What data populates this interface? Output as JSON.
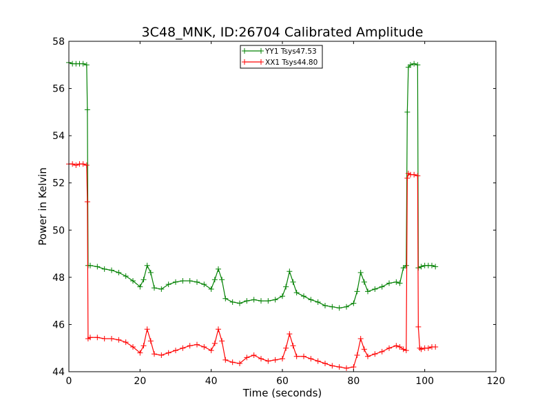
{
  "chart_data": {
    "type": "line",
    "title": "3C48_MNK, ID:26704 Calibrated Amplitude",
    "xlabel": "Time (seconds)",
    "ylabel": "Power in Kelvin",
    "xlim": [
      0,
      120
    ],
    "ylim": [
      44,
      58
    ],
    "xticks": [
      0,
      20,
      40,
      60,
      80,
      100,
      120
    ],
    "yticks": [
      44,
      46,
      48,
      50,
      52,
      54,
      56,
      58
    ],
    "grid": false,
    "legend_position": "top-center",
    "marker": "plus",
    "series": [
      {
        "name": "YY1 Tsys47.53",
        "color": "#008000",
        "points": [
          [
            0,
            57.1
          ],
          [
            1,
            57.05
          ],
          [
            2,
            57.05
          ],
          [
            3,
            57.05
          ],
          [
            4,
            57.05
          ],
          [
            5,
            57.0
          ],
          [
            5.2,
            55.1
          ],
          [
            5.4,
            48.5
          ],
          [
            6,
            48.5
          ],
          [
            8,
            48.45
          ],
          [
            10,
            48.35
          ],
          [
            12,
            48.3
          ],
          [
            14,
            48.2
          ],
          [
            16,
            48.05
          ],
          [
            18,
            47.85
          ],
          [
            20,
            47.6
          ],
          [
            21,
            47.9
          ],
          [
            22,
            48.5
          ],
          [
            23,
            48.2
          ],
          [
            24,
            47.55
          ],
          [
            26,
            47.5
          ],
          [
            28,
            47.7
          ],
          [
            30,
            47.8
          ],
          [
            32,
            47.85
          ],
          [
            34,
            47.85
          ],
          [
            36,
            47.8
          ],
          [
            38,
            47.7
          ],
          [
            40,
            47.5
          ],
          [
            41,
            47.9
          ],
          [
            42,
            48.35
          ],
          [
            43,
            47.9
          ],
          [
            44,
            47.1
          ],
          [
            46,
            46.95
          ],
          [
            48,
            46.9
          ],
          [
            50,
            47.0
          ],
          [
            52,
            47.05
          ],
          [
            54,
            47.0
          ],
          [
            56,
            47.0
          ],
          [
            58,
            47.05
          ],
          [
            60,
            47.2
          ],
          [
            61,
            47.6
          ],
          [
            62,
            48.25
          ],
          [
            63,
            47.8
          ],
          [
            64,
            47.35
          ],
          [
            66,
            47.2
          ],
          [
            68,
            47.05
          ],
          [
            70,
            46.95
          ],
          [
            72,
            46.8
          ],
          [
            74,
            46.75
          ],
          [
            76,
            46.7
          ],
          [
            78,
            46.75
          ],
          [
            80,
            46.9
          ],
          [
            81,
            47.4
          ],
          [
            82,
            48.2
          ],
          [
            83,
            47.8
          ],
          [
            84,
            47.4
          ],
          [
            86,
            47.5
          ],
          [
            88,
            47.6
          ],
          [
            90,
            47.75
          ],
          [
            92,
            47.8
          ],
          [
            93,
            47.75
          ],
          [
            94,
            48.4
          ],
          [
            94.8,
            48.5
          ],
          [
            95.1,
            55.0
          ],
          [
            95.4,
            56.9
          ],
          [
            96,
            57.0
          ],
          [
            97,
            57.05
          ],
          [
            98,
            57.0
          ],
          [
            98.2,
            48.4
          ],
          [
            99,
            48.45
          ],
          [
            100,
            48.5
          ],
          [
            101,
            48.5
          ],
          [
            102,
            48.5
          ],
          [
            103,
            48.45
          ]
        ]
      },
      {
        "name": "XX1 Tsys44.80",
        "color": "#ff0000",
        "points": [
          [
            0,
            52.8
          ],
          [
            1,
            52.8
          ],
          [
            2,
            52.75
          ],
          [
            3,
            52.8
          ],
          [
            4,
            52.8
          ],
          [
            5,
            52.75
          ],
          [
            5.2,
            51.2
          ],
          [
            5.4,
            45.4
          ],
          [
            6,
            45.45
          ],
          [
            8,
            45.45
          ],
          [
            10,
            45.4
          ],
          [
            12,
            45.4
          ],
          [
            14,
            45.35
          ],
          [
            16,
            45.25
          ],
          [
            18,
            45.05
          ],
          [
            20,
            44.8
          ],
          [
            21,
            45.1
          ],
          [
            22,
            45.8
          ],
          [
            23,
            45.3
          ],
          [
            24,
            44.75
          ],
          [
            26,
            44.7
          ],
          [
            28,
            44.8
          ],
          [
            30,
            44.9
          ],
          [
            32,
            45.0
          ],
          [
            34,
            45.1
          ],
          [
            36,
            45.15
          ],
          [
            38,
            45.05
          ],
          [
            40,
            44.9
          ],
          [
            41,
            45.2
          ],
          [
            42,
            45.8
          ],
          [
            43,
            45.3
          ],
          [
            44,
            44.5
          ],
          [
            46,
            44.4
          ],
          [
            48,
            44.35
          ],
          [
            50,
            44.6
          ],
          [
            52,
            44.7
          ],
          [
            54,
            44.55
          ],
          [
            56,
            44.45
          ],
          [
            58,
            44.5
          ],
          [
            60,
            44.55
          ],
          [
            61,
            45.0
          ],
          [
            62,
            45.6
          ],
          [
            63,
            45.1
          ],
          [
            64,
            44.65
          ],
          [
            66,
            44.65
          ],
          [
            68,
            44.55
          ],
          [
            70,
            44.45
          ],
          [
            72,
            44.35
          ],
          [
            74,
            44.25
          ],
          [
            76,
            44.2
          ],
          [
            78,
            44.15
          ],
          [
            80,
            44.2
          ],
          [
            81,
            44.7
          ],
          [
            82,
            45.4
          ],
          [
            83,
            44.95
          ],
          [
            84,
            44.65
          ],
          [
            86,
            44.75
          ],
          [
            88,
            44.85
          ],
          [
            90,
            45.0
          ],
          [
            92,
            45.1
          ],
          [
            93,
            45.05
          ],
          [
            94,
            44.95
          ],
          [
            94.8,
            44.9
          ],
          [
            95.1,
            52.2
          ],
          [
            95.4,
            52.4
          ],
          [
            96,
            52.35
          ],
          [
            97,
            52.35
          ],
          [
            98,
            52.3
          ],
          [
            98.2,
            45.9
          ],
          [
            98.6,
            45.0
          ],
          [
            99,
            44.95
          ],
          [
            100,
            45.0
          ],
          [
            101,
            45.0
          ],
          [
            102,
            45.05
          ],
          [
            103,
            45.05
          ]
        ]
      }
    ]
  }
}
